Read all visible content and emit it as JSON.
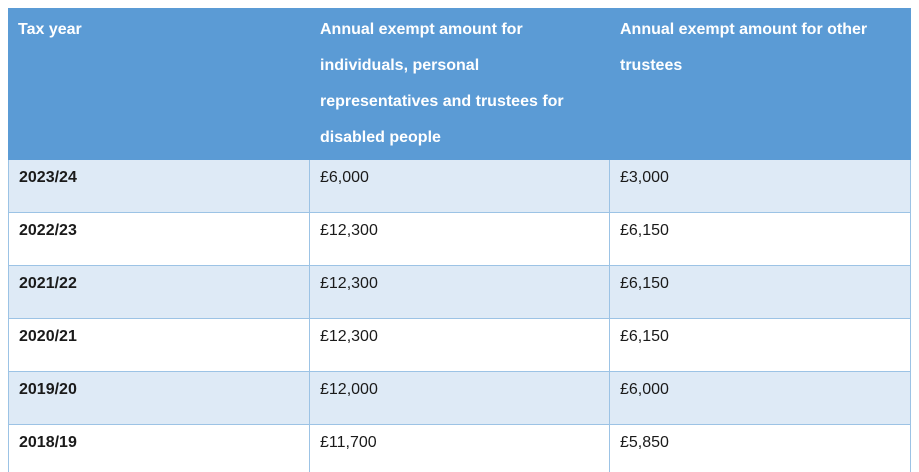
{
  "table": {
    "headers": {
      "tax_year": "Tax year",
      "individuals": "Annual exempt amount for individuals, personal representatives and trustees for disabled people",
      "other_trustees": "Annual exempt amount for other trustees"
    },
    "rows": [
      {
        "year": "2023/24",
        "individual": "£6,000",
        "other": "£3,000"
      },
      {
        "year": "2022/23",
        "individual": "£12,300",
        "other": "£6,150"
      },
      {
        "year": "2021/22",
        "individual": "£12,300",
        "other": "£6,150"
      },
      {
        "year": "2020/21",
        "individual": "£12,300",
        "other": "£6,150"
      },
      {
        "year": "2019/20",
        "individual": "£12,000",
        "other": "£6,000"
      },
      {
        "year": "2018/19",
        "individual": "£11,700",
        "other": "£5,850"
      }
    ],
    "colors": {
      "header_bg": "#5b9bd5",
      "header_text": "#ffffff",
      "banded_row_bg": "#deeaf6",
      "plain_row_bg": "#ffffff",
      "border": "#9cc3e5",
      "body_text": "#1a1a1a"
    }
  }
}
